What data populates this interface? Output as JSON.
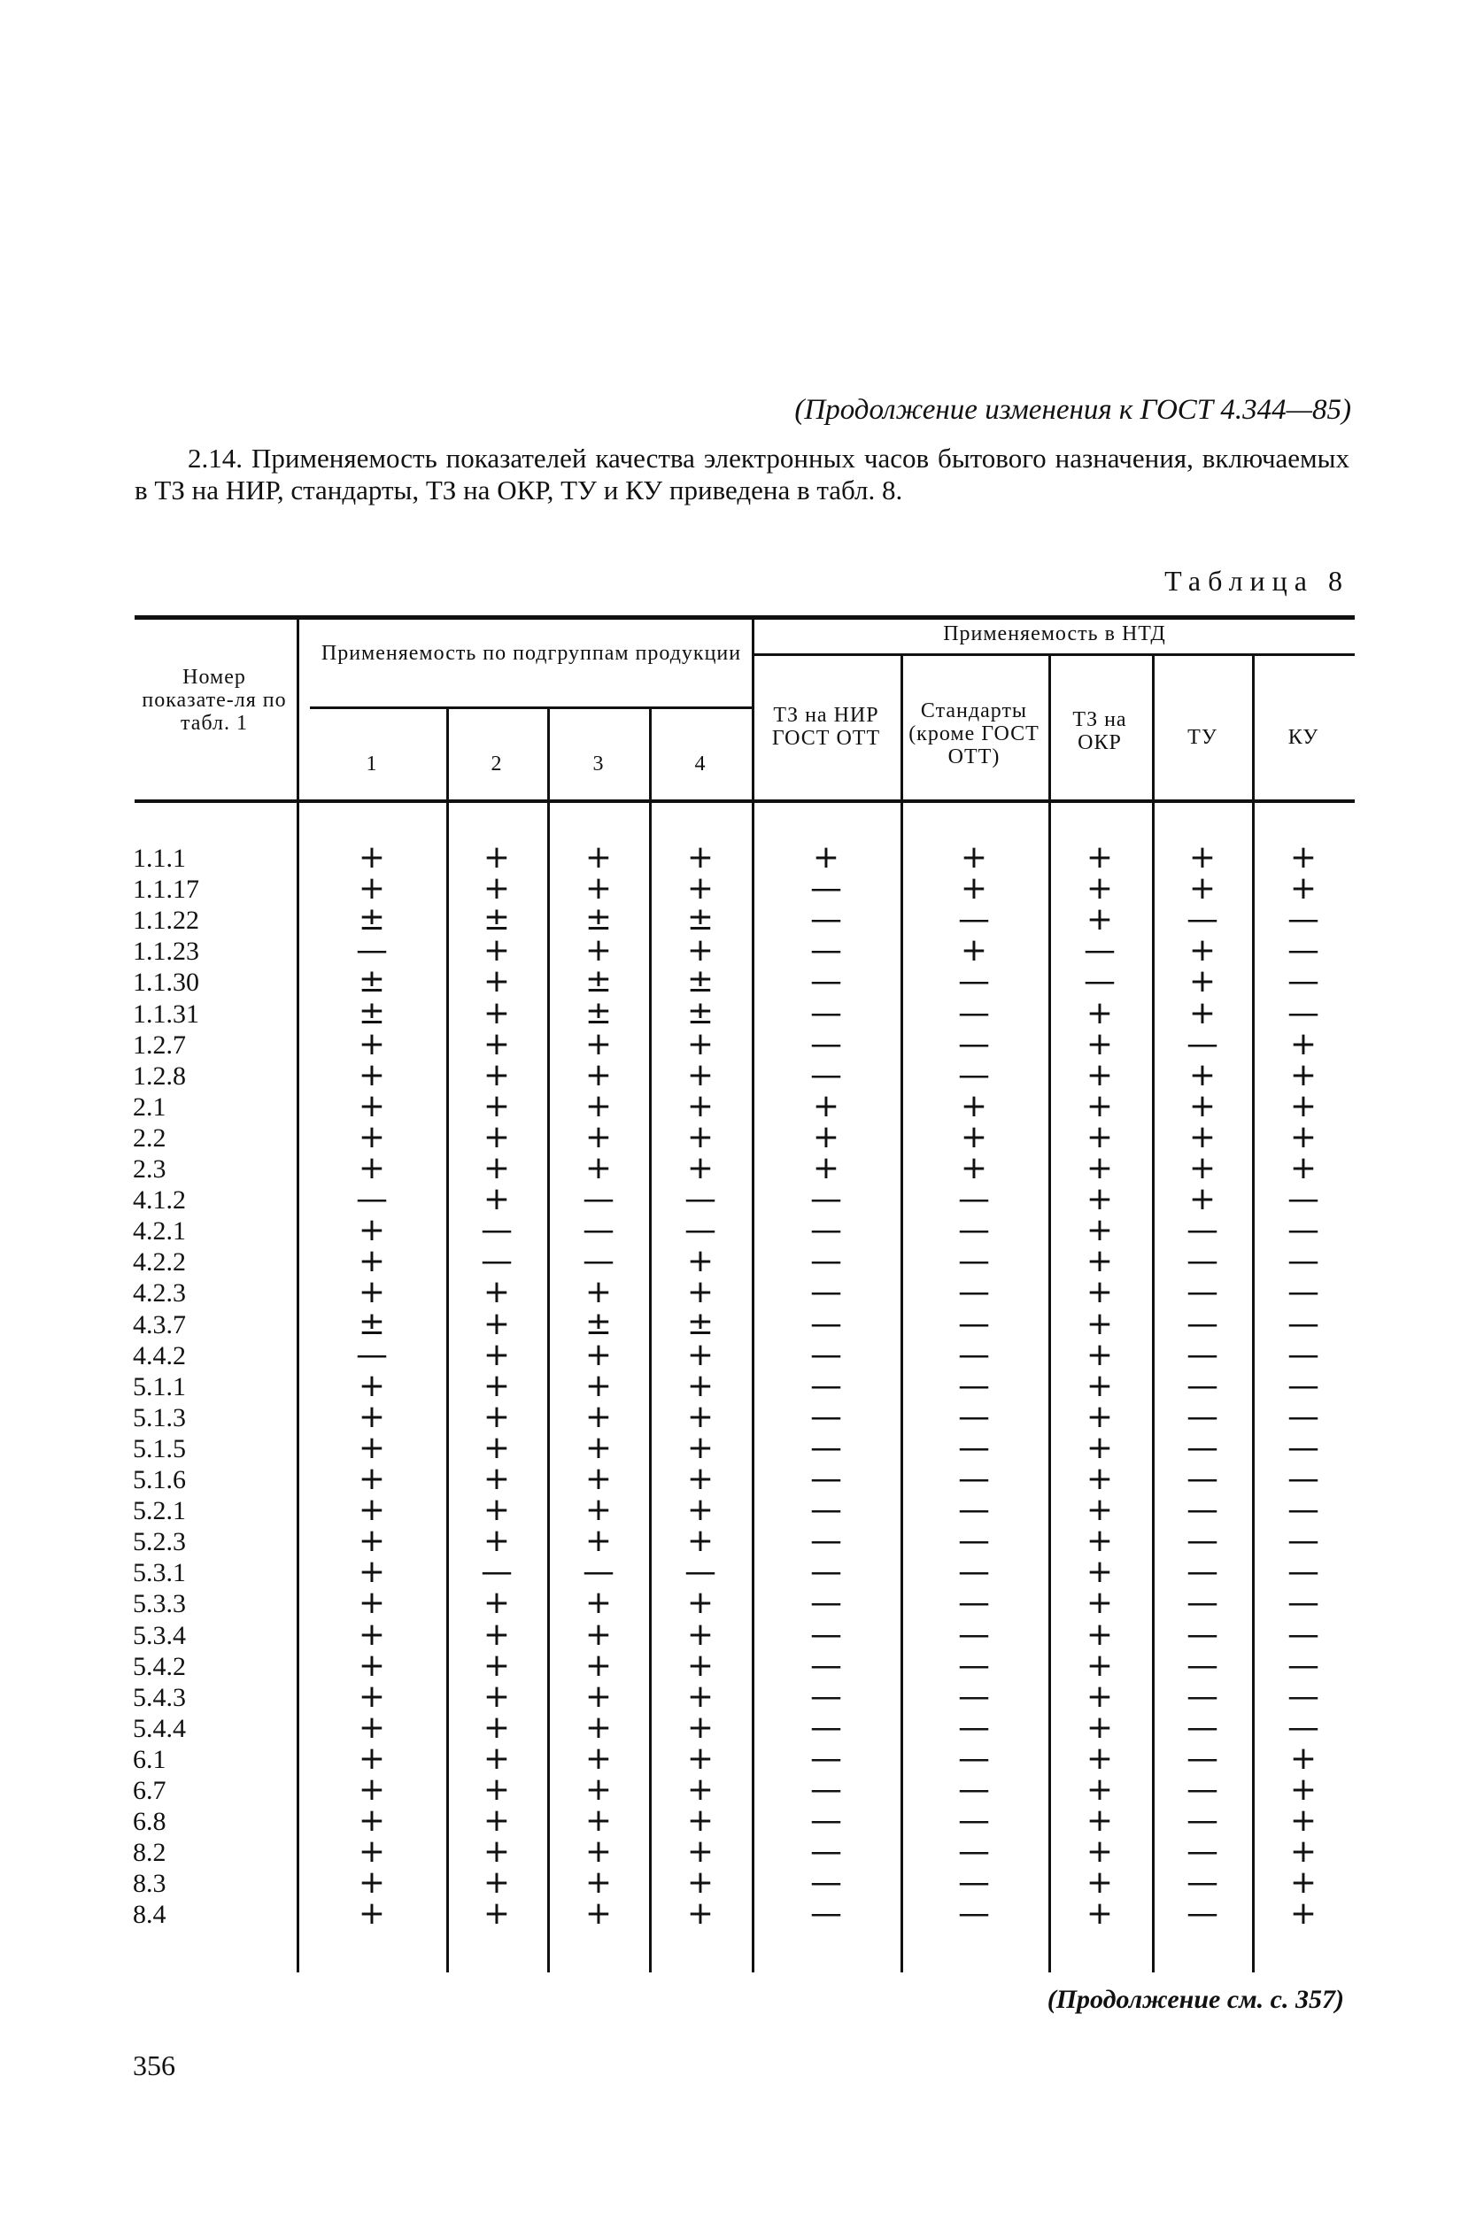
{
  "header": {
    "continuation": "(Продолжение изменения к ГОСТ 4.344—85)"
  },
  "paragraph": "2.14. Применяемость показателей качества электронных часов бытового назначения, включаемых в ТЗ на НИР, стандарты, ТЗ на ОКР, ТУ и КУ приведена в табл. 8.",
  "table": {
    "caption": "Таблица 8",
    "headers": {
      "index": "Номер показате-ля по табл. 1",
      "group_subgroups": "Применяемость по подгруппам продукции",
      "group_ntd": "Применяемость в НТД",
      "columns": [
        "1",
        "2",
        "3",
        "4",
        "ТЗ на НИР ГОСТ ОТТ",
        "Стандарты (кроме ГОСТ ОТТ)",
        "ТЗ на ОКР",
        "ТУ",
        "КУ"
      ]
    },
    "rows": [
      {
        "id": "1.1.1",
        "values": [
          "+",
          "+",
          "+",
          "+",
          "+",
          "+",
          "+",
          "+",
          "+"
        ]
      },
      {
        "id": "1.1.17",
        "values": [
          "+",
          "+",
          "+",
          "+",
          "—",
          "+",
          "+",
          "+",
          "+"
        ]
      },
      {
        "id": "1.1.22",
        "values": [
          "±",
          "±",
          "±",
          "±",
          "—",
          "—",
          "+",
          "—",
          "—"
        ]
      },
      {
        "id": "1.1.23",
        "values": [
          "—",
          "+",
          "+",
          "+",
          "—",
          "+",
          "—",
          "+",
          "—"
        ]
      },
      {
        "id": "1.1.30",
        "values": [
          "±",
          "+",
          "±",
          "±",
          "—",
          "—",
          "—",
          "+",
          "—"
        ]
      },
      {
        "id": "1.1.31",
        "values": [
          "±",
          "+",
          "±",
          "±",
          "—",
          "—",
          "+",
          "+",
          "—"
        ]
      },
      {
        "id": "1.2.7",
        "values": [
          "+",
          "+",
          "+",
          "+",
          "—",
          "—",
          "+",
          "—",
          "+"
        ]
      },
      {
        "id": "1.2.8",
        "values": [
          "+",
          "+",
          "+",
          "+",
          "—",
          "—",
          "+",
          "+",
          "+"
        ]
      },
      {
        "id": "2.1",
        "values": [
          "+",
          "+",
          "+",
          "+",
          "+",
          "+",
          "+",
          "+",
          "+"
        ]
      },
      {
        "id": "2.2",
        "values": [
          "+",
          "+",
          "+",
          "+",
          "+",
          "+",
          "+",
          "+",
          "+"
        ]
      },
      {
        "id": "2.3",
        "values": [
          "+",
          "+",
          "+",
          "+",
          "+",
          "+",
          "+",
          "+",
          "+"
        ]
      },
      {
        "id": "4.1.2",
        "values": [
          "—",
          "+",
          "—",
          "—",
          "—",
          "—",
          "+",
          "+",
          "—"
        ]
      },
      {
        "id": "4.2.1",
        "values": [
          "+",
          "—",
          "—",
          "—",
          "—",
          "—",
          "+",
          "—",
          "—"
        ]
      },
      {
        "id": "4.2.2",
        "values": [
          "+",
          "—",
          "—",
          "+",
          "—",
          "—",
          "+",
          "—",
          "—"
        ]
      },
      {
        "id": "4.2.3",
        "values": [
          "+",
          "+",
          "+",
          "+",
          "—",
          "—",
          "+",
          "—",
          "—"
        ]
      },
      {
        "id": "4.3.7",
        "values": [
          "±",
          "+",
          "±",
          "±",
          "—",
          "—",
          "+",
          "—",
          "—"
        ]
      },
      {
        "id": "4.4.2",
        "values": [
          "—",
          "+",
          "+",
          "+",
          "—",
          "—",
          "+",
          "—",
          "—"
        ]
      },
      {
        "id": "5.1.1",
        "values": [
          "+",
          "+",
          "+",
          "+",
          "—",
          "—",
          "+",
          "—",
          "—"
        ]
      },
      {
        "id": "5.1.3",
        "values": [
          "+",
          "+",
          "+",
          "+",
          "—",
          "—",
          "+",
          "—",
          "—"
        ]
      },
      {
        "id": "5.1.5",
        "values": [
          "+",
          "+",
          "+",
          "+",
          "—",
          "—",
          "+",
          "—",
          "—"
        ]
      },
      {
        "id": "5.1.6",
        "values": [
          "+",
          "+",
          "+",
          "+",
          "—",
          "—",
          "+",
          "—",
          "—"
        ]
      },
      {
        "id": "5.2.1",
        "values": [
          "+",
          "+",
          "+",
          "+",
          "—",
          "—",
          "+",
          "—",
          "—"
        ]
      },
      {
        "id": "5.2.3",
        "values": [
          "+",
          "+",
          "+",
          "+",
          "—",
          "—",
          "+",
          "—",
          "—"
        ]
      },
      {
        "id": "5.3.1",
        "values": [
          "+",
          "—",
          "—",
          "—",
          "—",
          "—",
          "+",
          "—",
          "—"
        ]
      },
      {
        "id": "5.3.3",
        "values": [
          "+",
          "+",
          "+",
          "+",
          "—",
          "—",
          "+",
          "—",
          "—"
        ]
      },
      {
        "id": "5.3.4",
        "values": [
          "+",
          "+",
          "+",
          "+",
          "—",
          "—",
          "+",
          "—",
          "—"
        ]
      },
      {
        "id": "5.4.2",
        "values": [
          "+",
          "+",
          "+",
          "+",
          "—",
          "—",
          "+",
          "—",
          "—"
        ]
      },
      {
        "id": "5.4.3",
        "values": [
          "+",
          "+",
          "+",
          "+",
          "—",
          "—",
          "+",
          "—",
          "—"
        ]
      },
      {
        "id": "5.4.4",
        "values": [
          "+",
          "+",
          "+",
          "+",
          "—",
          "—",
          "+",
          "—",
          "—"
        ]
      },
      {
        "id": "6.1",
        "values": [
          "+",
          "+",
          "+",
          "+",
          "—",
          "—",
          "+",
          "—",
          "+"
        ]
      },
      {
        "id": "6.7",
        "values": [
          "+",
          "+",
          "+",
          "+",
          "—",
          "—",
          "+",
          "—",
          "+"
        ]
      },
      {
        "id": "6.8",
        "values": [
          "+",
          "+",
          "+",
          "+",
          "—",
          "—",
          "+",
          "—",
          "+"
        ]
      },
      {
        "id": "8.2",
        "values": [
          "+",
          "+",
          "+",
          "+",
          "—",
          "—",
          "+",
          "—",
          "+"
        ]
      },
      {
        "id": "8.3",
        "values": [
          "+",
          "+",
          "+",
          "+",
          "—",
          "—",
          "+",
          "—",
          "+"
        ]
      },
      {
        "id": "8.4",
        "values": [
          "+",
          "+",
          "+",
          "+",
          "—",
          "—",
          "+",
          "—",
          "+"
        ]
      }
    ]
  },
  "footer": {
    "continuation": "(Продолжение см. с. 357)",
    "page_number": "356"
  }
}
